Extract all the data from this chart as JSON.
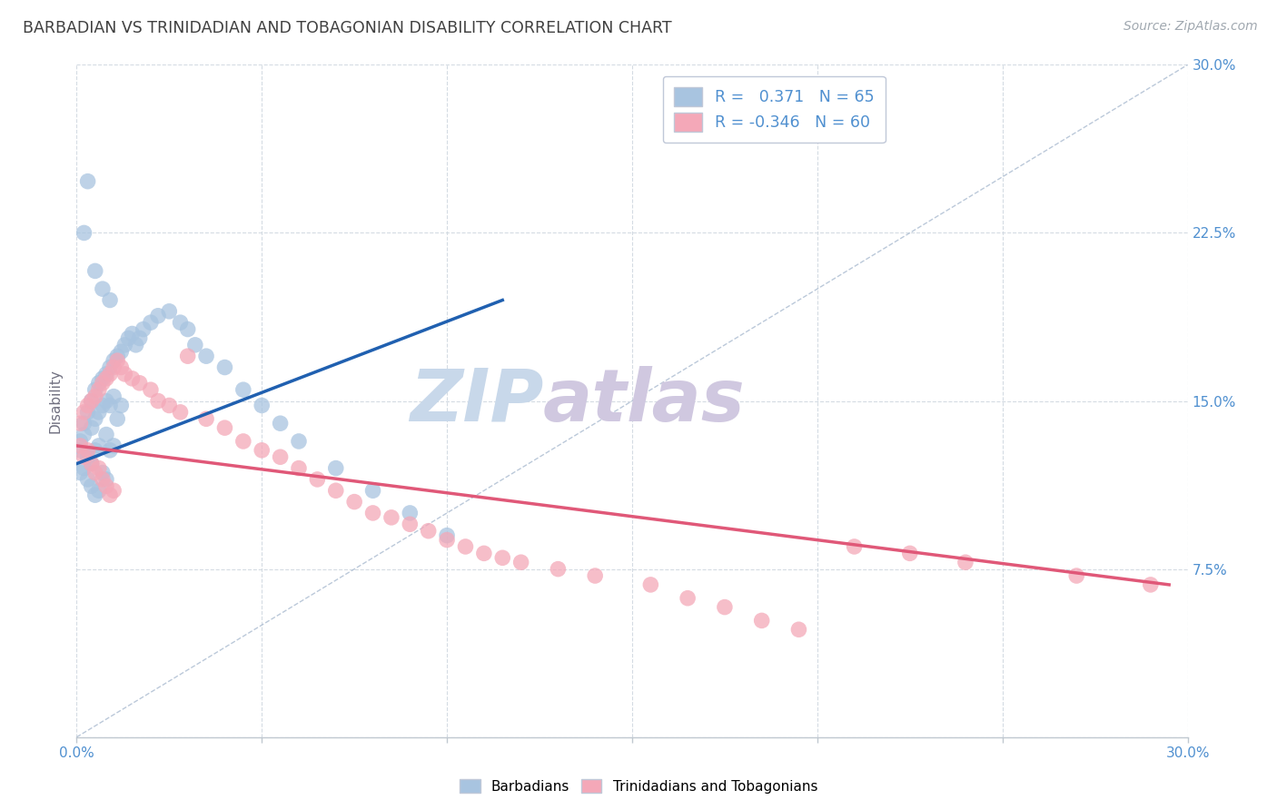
{
  "title": "BARBADIAN VS TRINIDADIAN AND TOBAGONIAN DISABILITY CORRELATION CHART",
  "source": "Source: ZipAtlas.com",
  "ylabel": "Disability",
  "xmin": 0.0,
  "xmax": 0.3,
  "ymin": 0.0,
  "ymax": 0.3,
  "legend_labels": [
    "Barbadians",
    "Trinidadians and Tobagonians"
  ],
  "blue_R": 0.371,
  "blue_N": 65,
  "pink_R": -0.346,
  "pink_N": 60,
  "blue_color": "#a8c4e0",
  "pink_color": "#f4a8b8",
  "blue_line_color": "#2060b0",
  "pink_line_color": "#e05878",
  "diag_line_color": "#aabbd0",
  "watermark_zip_color": "#c8d8ea",
  "watermark_atlas_color": "#d0c8e0",
  "background_color": "#ffffff",
  "grid_color": "#d0d8e0",
  "title_color": "#404040",
  "source_color": "#a0a8b0",
  "axis_label_color": "#707080",
  "right_tick_color": "#5090d0",
  "bottom_tick_color": "#5090d0",
  "blue_scatter_x": [
    0.001,
    0.001,
    0.001,
    0.002,
    0.002,
    0.002,
    0.003,
    0.003,
    0.003,
    0.004,
    0.004,
    0.004,
    0.004,
    0.005,
    0.005,
    0.005,
    0.005,
    0.006,
    0.006,
    0.006,
    0.006,
    0.007,
    0.007,
    0.007,
    0.008,
    0.008,
    0.008,
    0.008,
    0.009,
    0.009,
    0.009,
    0.01,
    0.01,
    0.01,
    0.011,
    0.011,
    0.012,
    0.012,
    0.013,
    0.014,
    0.015,
    0.016,
    0.017,
    0.018,
    0.02,
    0.022,
    0.025,
    0.028,
    0.03,
    0.032,
    0.035,
    0.04,
    0.045,
    0.05,
    0.055,
    0.06,
    0.07,
    0.08,
    0.09,
    0.1,
    0.002,
    0.003,
    0.005,
    0.007,
    0.009
  ],
  "blue_scatter_y": [
    0.132,
    0.128,
    0.118,
    0.14,
    0.135,
    0.12,
    0.145,
    0.125,
    0.115,
    0.15,
    0.138,
    0.122,
    0.112,
    0.155,
    0.142,
    0.128,
    0.108,
    0.158,
    0.145,
    0.13,
    0.11,
    0.16,
    0.148,
    0.118,
    0.162,
    0.15,
    0.135,
    0.115,
    0.165,
    0.148,
    0.128,
    0.168,
    0.152,
    0.13,
    0.17,
    0.142,
    0.172,
    0.148,
    0.175,
    0.178,
    0.18,
    0.175,
    0.178,
    0.182,
    0.185,
    0.188,
    0.19,
    0.185,
    0.182,
    0.175,
    0.17,
    0.165,
    0.155,
    0.148,
    0.14,
    0.132,
    0.12,
    0.11,
    0.1,
    0.09,
    0.225,
    0.248,
    0.208,
    0.2,
    0.195
  ],
  "pink_scatter_x": [
    0.001,
    0.001,
    0.002,
    0.002,
    0.003,
    0.003,
    0.004,
    0.004,
    0.005,
    0.005,
    0.006,
    0.006,
    0.007,
    0.007,
    0.008,
    0.008,
    0.009,
    0.009,
    0.01,
    0.01,
    0.011,
    0.012,
    0.013,
    0.015,
    0.017,
    0.02,
    0.022,
    0.025,
    0.028,
    0.03,
    0.035,
    0.04,
    0.045,
    0.05,
    0.055,
    0.06,
    0.065,
    0.07,
    0.075,
    0.08,
    0.085,
    0.09,
    0.095,
    0.1,
    0.105,
    0.11,
    0.115,
    0.12,
    0.13,
    0.14,
    0.155,
    0.165,
    0.175,
    0.185,
    0.195,
    0.21,
    0.225,
    0.24,
    0.27,
    0.29
  ],
  "pink_scatter_y": [
    0.14,
    0.13,
    0.145,
    0.125,
    0.148,
    0.128,
    0.15,
    0.122,
    0.152,
    0.118,
    0.155,
    0.12,
    0.158,
    0.115,
    0.16,
    0.112,
    0.162,
    0.108,
    0.165,
    0.11,
    0.168,
    0.165,
    0.162,
    0.16,
    0.158,
    0.155,
    0.15,
    0.148,
    0.145,
    0.17,
    0.142,
    0.138,
    0.132,
    0.128,
    0.125,
    0.12,
    0.115,
    0.11,
    0.105,
    0.1,
    0.098,
    0.095,
    0.092,
    0.088,
    0.085,
    0.082,
    0.08,
    0.078,
    0.075,
    0.072,
    0.068,
    0.062,
    0.058,
    0.052,
    0.048,
    0.085,
    0.082,
    0.078,
    0.072,
    0.068
  ],
  "blue_line_x": [
    0.0,
    0.115
  ],
  "blue_line_y": [
    0.122,
    0.195
  ],
  "pink_line_x": [
    0.0,
    0.295
  ],
  "pink_line_y": [
    0.13,
    0.068
  ]
}
